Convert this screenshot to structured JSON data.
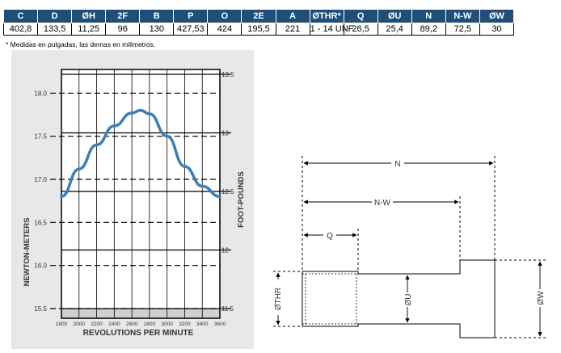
{
  "spec_table": {
    "headers": [
      "C",
      "D",
      "ØH",
      "2F",
      "B",
      "P",
      "O",
      "2E",
      "A",
      "ØTHR*",
      "Q",
      "ØU",
      "N",
      "N-W",
      "ØW"
    ],
    "values": [
      "402,8",
      "133,5",
      "11,25",
      "96",
      "130",
      "427,53",
      "424",
      "195,5",
      "221",
      "1 - 14 UNF",
      "26,5",
      "25,4",
      "89,2",
      "72,5",
      "30"
    ]
  },
  "footnote": "* Medidas en pulgadas, las demas en milimetros.",
  "chart_data": {
    "type": "line",
    "xlabel": "REVOLUTIONS PER MINUTE",
    "ylabel": "NEWTON-METERS",
    "y2label": "FOOT-POUNDS",
    "x_ticks": [
      "1800",
      "2000",
      "2200",
      "2400",
      "2600",
      "2800",
      "3000",
      "3200",
      "3400",
      "3600"
    ],
    "xlim": [
      1800,
      3600
    ],
    "y_ticks": [
      "18.0",
      "17.5",
      "17.0",
      "16.5",
      "16.0",
      "15.5"
    ],
    "y_tick_values": [
      18.0,
      17.5,
      17.0,
      16.5,
      16.0,
      15.5
    ],
    "ylim": [
      15.5,
      18.05
    ],
    "y2_ticks": [
      "13.5",
      "13",
      "12.5",
      "12",
      "11.5"
    ],
    "y2_tick_values": [
      13.5,
      13.0,
      12.5,
      12.0,
      11.5
    ],
    "y2lim": [
      11.5,
      13.5
    ],
    "grid": true,
    "line_color": "#3a7fb8",
    "series": [
      {
        "x": [
          1800,
          2000,
          2200,
          2400,
          2600,
          2700,
          2800,
          3000,
          3200,
          3400,
          3600
        ],
        "y": [
          16.8,
          17.12,
          17.4,
          17.62,
          17.77,
          17.8,
          17.76,
          17.5,
          17.15,
          16.92,
          16.8
        ]
      }
    ]
  },
  "drawing": {
    "labels": {
      "n": "N",
      "nw": "N-W",
      "q": "Q",
      "thr": "ØTHR",
      "u": "ØU",
      "w": "ØW"
    }
  }
}
